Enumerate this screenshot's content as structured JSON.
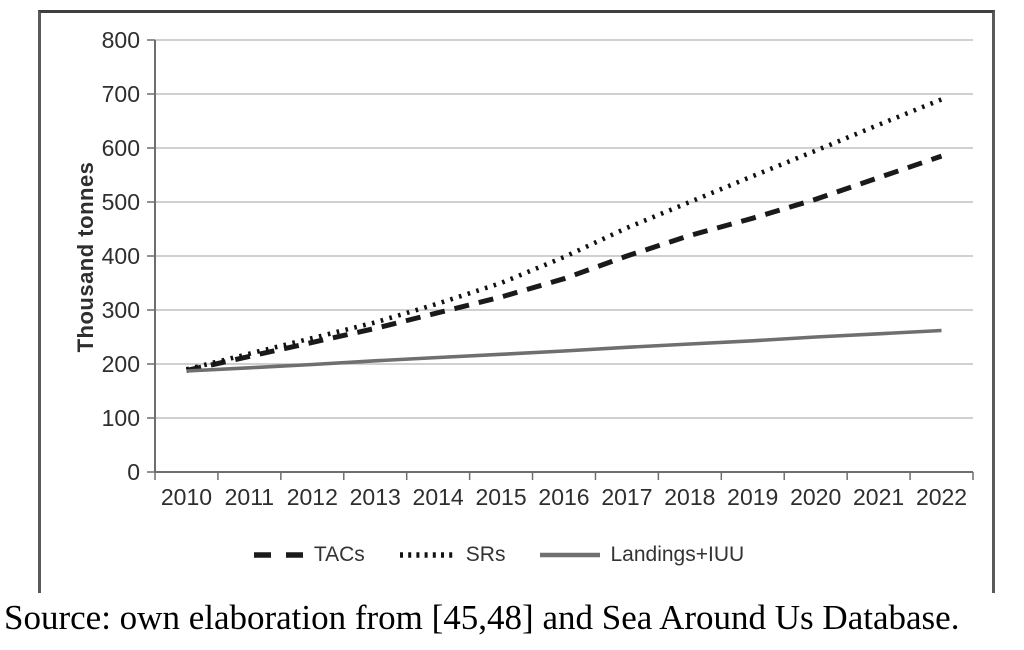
{
  "figure": {
    "caption": "Source: own elaboration from [45,48] and Sea Around Us Database."
  },
  "chart_data": {
    "type": "line",
    "title": "",
    "xlabel": "",
    "ylabel": "Thousand tonnes",
    "ylim": [
      0,
      800
    ],
    "y_ticks": [
      800,
      700,
      600,
      500,
      400,
      300,
      200,
      100,
      0
    ],
    "grid": "horizontal",
    "legend_position": "bottom",
    "categories": [
      "2010",
      "2011",
      "2012",
      "2013",
      "2014",
      "2015",
      "2016",
      "2017",
      "2018",
      "2019",
      "2020",
      "2021",
      "2022"
    ],
    "series": [
      {
        "name": "TACs",
        "style": "dashed",
        "color": "#1a1a1a",
        "values": [
          188,
          214,
          240,
          266,
          295,
          324,
          358,
          400,
          438,
          470,
          505,
          545,
          585
        ]
      },
      {
        "name": "SRs",
        "style": "dotted",
        "color": "#111111",
        "values": [
          190,
          219,
          248,
          277,
          312,
          350,
          398,
          452,
          500,
          548,
          595,
          643,
          690
        ]
      },
      {
        "name": "Landings+IUU",
        "style": "solid",
        "color": "#6f6f6f",
        "values": [
          187,
          193,
          199,
          206,
          212,
          218,
          224,
          231,
          237,
          243,
          250,
          256,
          262
        ]
      }
    ],
    "colors": {
      "gridline": "#b3b3b3",
      "axis": "#6e6e6e",
      "tick_text": "#2e2e2e"
    }
  }
}
